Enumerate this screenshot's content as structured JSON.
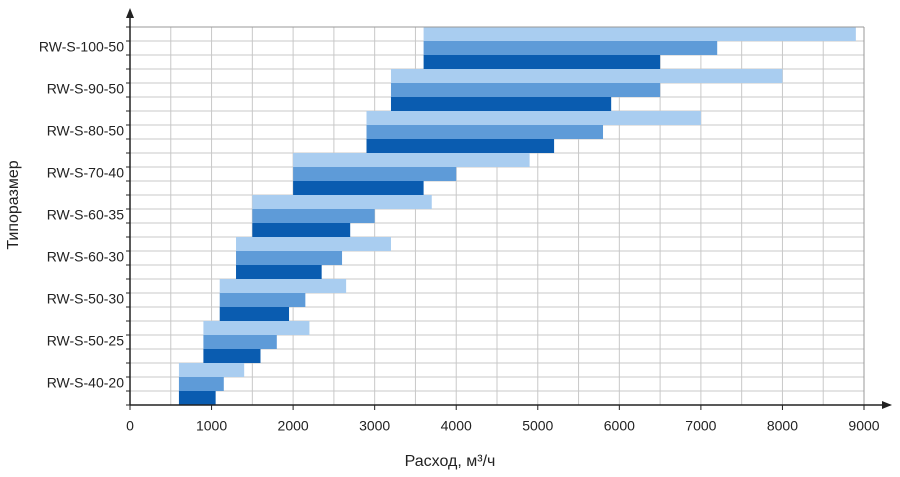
{
  "chart_data": {
    "type": "range-bar",
    "x_label": "Расход, м³/ч",
    "y_label": "Типоразмер",
    "categories": [
      "RW-S-100-50",
      "RW-S-90-50",
      "RW-S-80-50",
      "RW-S-70-40",
      "RW-S-60-35",
      "RW-S-60-30",
      "RW-S-50-30",
      "RW-S-50-25",
      "RW-S-40-20"
    ],
    "series": [
      {
        "color": "#a9cdf0",
        "values": [
          [
            3600,
            8900
          ],
          [
            3200,
            8000
          ],
          [
            2900,
            7000
          ],
          [
            2000,
            4900
          ],
          [
            1500,
            3700
          ],
          [
            1300,
            3200
          ],
          [
            1100,
            2650
          ],
          [
            900,
            2200
          ],
          [
            600,
            1400
          ]
        ]
      },
      {
        "color": "#5e9bd8",
        "values": [
          [
            3600,
            7200
          ],
          [
            3200,
            6500
          ],
          [
            2900,
            5800
          ],
          [
            2000,
            4000
          ],
          [
            1500,
            3000
          ],
          [
            1300,
            2600
          ],
          [
            1100,
            2150
          ],
          [
            900,
            1800
          ],
          [
            600,
            1150
          ]
        ]
      },
      {
        "color": "#0a5cb0",
        "values": [
          [
            3600,
            6500
          ],
          [
            3200,
            5900
          ],
          [
            2900,
            5200
          ],
          [
            2000,
            3600
          ],
          [
            1500,
            2700
          ],
          [
            1300,
            2350
          ],
          [
            1100,
            1950
          ],
          [
            900,
            1600
          ],
          [
            600,
            1050
          ]
        ]
      }
    ],
    "xlim": [
      0,
      9000
    ],
    "xticks": [
      0,
      1000,
      2000,
      3000,
      4000,
      5000,
      6000,
      7000,
      8000,
      9000
    ],
    "minor_xticks": [
      500,
      1500,
      2500,
      3500,
      4500,
      5500,
      6500,
      7500,
      8500
    ],
    "grid": true
  }
}
